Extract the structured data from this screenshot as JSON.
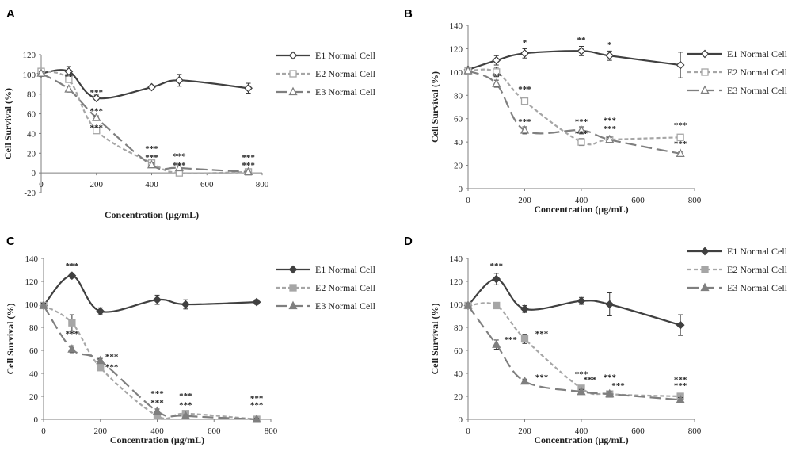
{
  "chart_data": [
    {
      "panel": "A",
      "type": "line",
      "xlabel": "Concentration (µg/mL)",
      "ylabel": "Cell Survival (%)",
      "xlim": [
        0,
        800
      ],
      "ylim": [
        -20,
        120
      ],
      "xticks": [
        0,
        200,
        400,
        600,
        800
      ],
      "yticks": [
        -20,
        0,
        20,
        40,
        60,
        80,
        100,
        120
      ],
      "legend_position": "right",
      "series": [
        {
          "name": "E1 Normal Cell",
          "color": "#404040",
          "dash": "solid",
          "marker": "open-diamond",
          "x": [
            0,
            100,
            200,
            400,
            500,
            750
          ],
          "y": [
            101,
            103,
            76,
            87,
            94,
            86
          ],
          "err": [
            3,
            5,
            3,
            2,
            6,
            5
          ]
        },
        {
          "name": "E2 Normal Cell",
          "color": "#a6a6a6",
          "dash": "short",
          "marker": "open-square",
          "x": [
            0,
            100,
            200,
            400,
            500,
            750
          ],
          "y": [
            103,
            95,
            43,
            10,
            0,
            1
          ],
          "err": [
            2,
            3,
            2,
            2,
            2,
            2
          ]
        },
        {
          "name": "E3 Normal Cell",
          "color": "#7f7f7f",
          "dash": "long",
          "marker": "open-triangle",
          "x": [
            0,
            100,
            200,
            400,
            500,
            750
          ],
          "y": [
            101,
            85,
            56,
            8,
            5,
            1
          ],
          "err": [
            2,
            3,
            2,
            2,
            2,
            2
          ]
        }
      ],
      "annotations": [
        {
          "x": 100,
          "y": 95,
          "text": "**"
        },
        {
          "x": 200,
          "y": 79,
          "text": "***"
        },
        {
          "x": 200,
          "y": 60,
          "text": "***"
        },
        {
          "x": 200,
          "y": 43,
          "text": "***"
        },
        {
          "x": 400,
          "y": 22,
          "text": "***"
        },
        {
          "x": 400,
          "y": 13,
          "text": "***"
        },
        {
          "x": 500,
          "y": 14,
          "text": "***"
        },
        {
          "x": 500,
          "y": 5,
          "text": "***"
        },
        {
          "x": 750,
          "y": 13,
          "text": "***"
        },
        {
          "x": 750,
          "y": 5,
          "text": "***"
        }
      ]
    },
    {
      "panel": "B",
      "type": "line",
      "xlabel": "Concentration (µg/mL)",
      "ylabel": "Cell Survival (%)",
      "xlim": [
        0,
        800
      ],
      "ylim": [
        0,
        140
      ],
      "xticks": [
        0,
        200,
        400,
        600,
        800
      ],
      "yticks": [
        0,
        20,
        40,
        60,
        80,
        100,
        120,
        140
      ],
      "legend_position": "right",
      "series": [
        {
          "name": "E1 Normal Cell",
          "color": "#404040",
          "dash": "solid",
          "marker": "open-diamond",
          "x": [
            0,
            100,
            200,
            400,
            500,
            750
          ],
          "y": [
            102,
            110,
            116,
            118,
            114,
            106
          ],
          "err": [
            2,
            4,
            4,
            4,
            4,
            11
          ]
        },
        {
          "name": "E2 Normal Cell",
          "color": "#a6a6a6",
          "dash": "short",
          "marker": "open-square",
          "x": [
            0,
            100,
            200,
            400,
            500,
            750
          ],
          "y": [
            101,
            100,
            75,
            40,
            42,
            44
          ],
          "err": [
            2,
            4,
            2,
            3,
            2,
            2
          ]
        },
        {
          "name": "E3 Normal Cell",
          "color": "#7f7f7f",
          "dash": "long",
          "marker": "open-triangle",
          "x": [
            0,
            100,
            200,
            400,
            500,
            750
          ],
          "y": [
            101,
            90,
            50,
            50,
            42,
            30
          ],
          "err": [
            2,
            3,
            3,
            3,
            2,
            2
          ]
        }
      ],
      "annotations": [
        {
          "x": 200,
          "y": 123,
          "text": "*"
        },
        {
          "x": 400,
          "y": 125,
          "text": "**"
        },
        {
          "x": 500,
          "y": 121,
          "text": "*"
        },
        {
          "x": 100,
          "y": 94,
          "text": "**"
        },
        {
          "x": 200,
          "y": 83,
          "text": "***"
        },
        {
          "x": 200,
          "y": 55,
          "text": "***"
        },
        {
          "x": 400,
          "y": 55,
          "text": "***"
        },
        {
          "x": 400,
          "y": 45,
          "text": "***"
        },
        {
          "x": 500,
          "y": 56,
          "text": "***"
        },
        {
          "x": 500,
          "y": 49,
          "text": "***"
        },
        {
          "x": 750,
          "y": 52,
          "text": "***"
        },
        {
          "x": 750,
          "y": 36,
          "text": "***"
        }
      ]
    },
    {
      "panel": "C",
      "type": "line",
      "xlabel": "Concentration (µg/mL)",
      "ylabel": "Cell Survival (%)",
      "xlim": [
        0,
        800
      ],
      "ylim": [
        0,
        140
      ],
      "xticks": [
        0,
        200,
        400,
        600,
        800
      ],
      "yticks": [
        0,
        20,
        40,
        60,
        80,
        100,
        120,
        140
      ],
      "legend_position": "right",
      "series": [
        {
          "name": "E1 Normal Cell",
          "color": "#404040",
          "dash": "solid",
          "marker": "filled-diamond",
          "x": [
            0,
            100,
            200,
            400,
            500,
            750
          ],
          "y": [
            99,
            125,
            94,
            104,
            100,
            102
          ],
          "err": [
            2,
            2,
            3,
            4,
            4,
            2
          ]
        },
        {
          "name": "E2 Normal Cell",
          "color": "#a6a6a6",
          "dash": "short",
          "marker": "filled-square",
          "x": [
            0,
            100,
            200,
            400,
            500,
            750
          ],
          "y": [
            99,
            84,
            45,
            3,
            5,
            0
          ],
          "err": [
            2,
            7,
            2,
            2,
            2,
            1
          ]
        },
        {
          "name": "E3 Normal Cell",
          "color": "#7f7f7f",
          "dash": "long",
          "marker": "filled-triangle",
          "x": [
            0,
            100,
            200,
            400,
            500,
            750
          ],
          "y": [
            99,
            61,
            51,
            7,
            3,
            0
          ],
          "err": [
            2,
            3,
            2,
            2,
            1,
            1
          ]
        }
      ],
      "annotations": [
        {
          "x": 100,
          "y": 131,
          "text": "***"
        },
        {
          "x": 100,
          "y": 72,
          "text": "***"
        },
        {
          "x": 240,
          "y": 52,
          "text": "***"
        },
        {
          "x": 240,
          "y": 43,
          "text": "***"
        },
        {
          "x": 400,
          "y": 20,
          "text": "***"
        },
        {
          "x": 400,
          "y": 12,
          "text": "***"
        },
        {
          "x": 500,
          "y": 18,
          "text": "***"
        },
        {
          "x": 500,
          "y": 10,
          "text": "***"
        },
        {
          "x": 750,
          "y": 16,
          "text": "***"
        },
        {
          "x": 750,
          "y": 10,
          "text": "***"
        }
      ]
    },
    {
      "panel": "D",
      "type": "line",
      "xlabel": "Concentration (µg/mL)",
      "ylabel": "Cell Survival (%)",
      "xlim": [
        0,
        800
      ],
      "ylim": [
        0,
        140
      ],
      "xticks": [
        0,
        200,
        400,
        600,
        800
      ],
      "yticks": [
        0,
        20,
        40,
        60,
        80,
        100,
        120,
        140
      ],
      "legend_position": "right",
      "series": [
        {
          "name": "E1 Normal Cell",
          "color": "#404040",
          "dash": "solid",
          "marker": "filled-diamond",
          "x": [
            0,
            100,
            200,
            400,
            500,
            750
          ],
          "y": [
            99,
            122,
            96,
            103,
            100,
            82
          ],
          "err": [
            2,
            5,
            3,
            3,
            10,
            9
          ]
        },
        {
          "name": "E2 Normal Cell",
          "color": "#a6a6a6",
          "dash": "short",
          "marker": "filled-square",
          "x": [
            0,
            100,
            200,
            400,
            500,
            750
          ],
          "y": [
            99,
            99,
            70,
            27,
            22,
            20
          ],
          "err": [
            2,
            2,
            4,
            2,
            2,
            2
          ]
        },
        {
          "name": "E3 Normal Cell",
          "color": "#7f7f7f",
          "dash": "long",
          "marker": "filled-triangle",
          "x": [
            0,
            100,
            200,
            400,
            500,
            750
          ],
          "y": [
            99,
            65,
            33,
            24,
            22,
            17
          ],
          "err": [
            2,
            4,
            2,
            2,
            2,
            2
          ]
        }
      ],
      "annotations": [
        {
          "x": 100,
          "y": 131,
          "text": "***"
        },
        {
          "x": 150,
          "y": 67,
          "text": "***"
        },
        {
          "x": 260,
          "y": 72,
          "text": "***"
        },
        {
          "x": 260,
          "y": 34,
          "text": "***"
        },
        {
          "x": 400,
          "y": 37,
          "text": "***"
        },
        {
          "x": 430,
          "y": 32,
          "text": "***"
        },
        {
          "x": 500,
          "y": 34,
          "text": "***"
        },
        {
          "x": 530,
          "y": 27,
          "text": "***"
        },
        {
          "x": 750,
          "y": 32,
          "text": "***"
        },
        {
          "x": 750,
          "y": 27,
          "text": "***"
        }
      ]
    }
  ]
}
